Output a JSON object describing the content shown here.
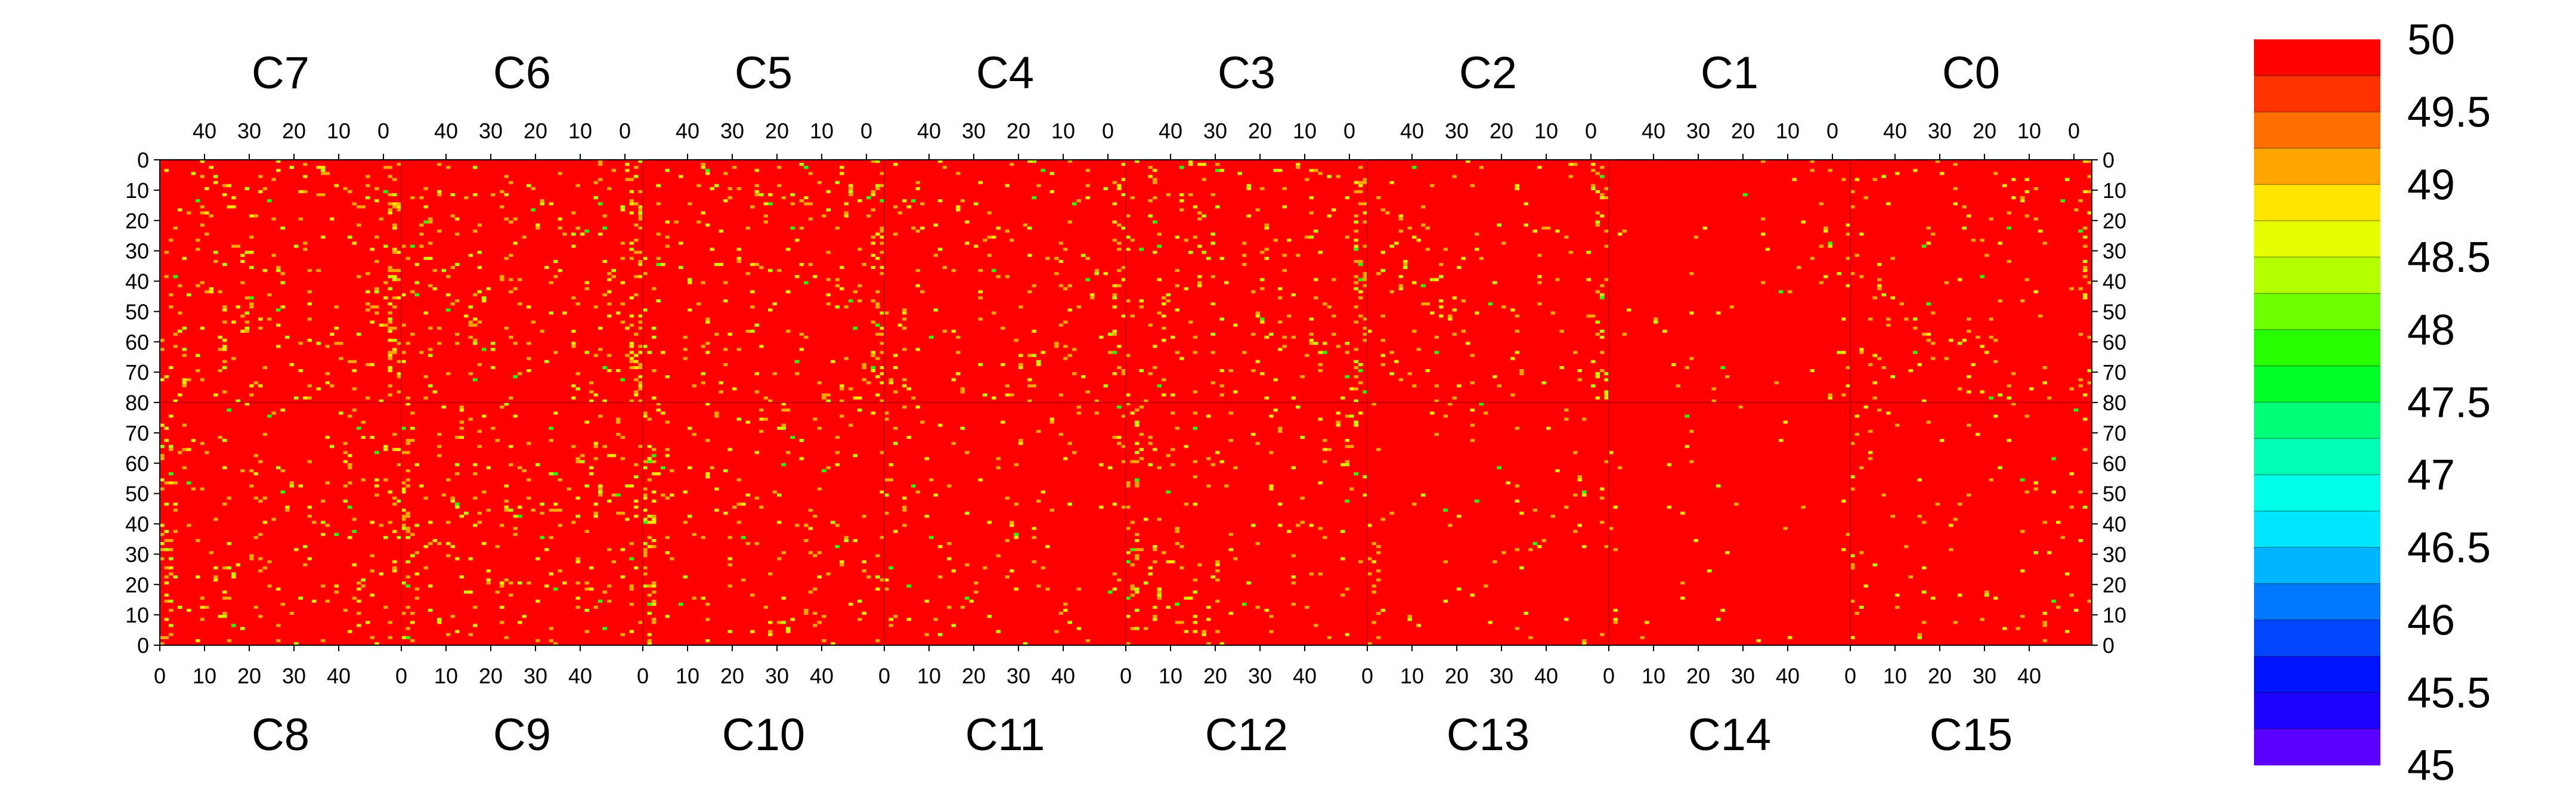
{
  "chart_data": {
    "type": "heatmap",
    "title": "",
    "xlabel": "",
    "ylabel": "",
    "top_chips": [
      "C7",
      "C6",
      "C5",
      "C4",
      "C3",
      "C2",
      "C1",
      "C0"
    ],
    "bottom_chips": [
      "C8",
      "C9",
      "C10",
      "C11",
      "C12",
      "C13",
      "C14",
      "C15"
    ],
    "columns_per_chip": 54,
    "rows_per_half": 80,
    "top_x_ticks": [
      "40",
      "30",
      "20",
      "10",
      "0"
    ],
    "bottom_x_ticks": [
      "0",
      "10",
      "20",
      "30",
      "40"
    ],
    "top_y_ticks": [
      "0",
      "10",
      "20",
      "30",
      "40",
      "50",
      "60",
      "70",
      "80"
    ],
    "bottom_y_ticks": [
      "70",
      "60",
      "50",
      "40",
      "30",
      "20",
      "10",
      "0"
    ],
    "value_range": [
      45,
      50
    ],
    "dominant_value": 50,
    "colorbar": {
      "labels": [
        "50",
        "49.5",
        "49",
        "48.5",
        "48",
        "47.5",
        "47",
        "46.5",
        "46",
        "45.5",
        "45"
      ],
      "colors": [
        "#ff0000",
        "#ff3200",
        "#ff6e00",
        "#ffa500",
        "#ffe600",
        "#e6ff00",
        "#b4ff00",
        "#6eff00",
        "#28ff00",
        "#00ff28",
        "#00ff78",
        "#00ffb4",
        "#00ffe6",
        "#00e6ff",
        "#00b4ff",
        "#0078ff",
        "#0046ff",
        "#0014ff",
        "#1e00ff",
        "#5a00ff"
      ]
    },
    "speckle_colors": [
      "#ffa500",
      "#ffe600",
      "#b4ff00",
      "#28ff00"
    ],
    "chip_noise_density": {
      "C7": 0.05,
      "C6": 0.045,
      "C5": 0.04,
      "C4": 0.04,
      "C3": 0.04,
      "C2": 0.03,
      "C1": 0.01,
      "C0": 0.025,
      "C8": 0.04,
      "C9": 0.045,
      "C10": 0.04,
      "C11": 0.02,
      "C12": 0.035,
      "C13": 0.015,
      "C14": 0.008,
      "C15": 0.02
    }
  }
}
